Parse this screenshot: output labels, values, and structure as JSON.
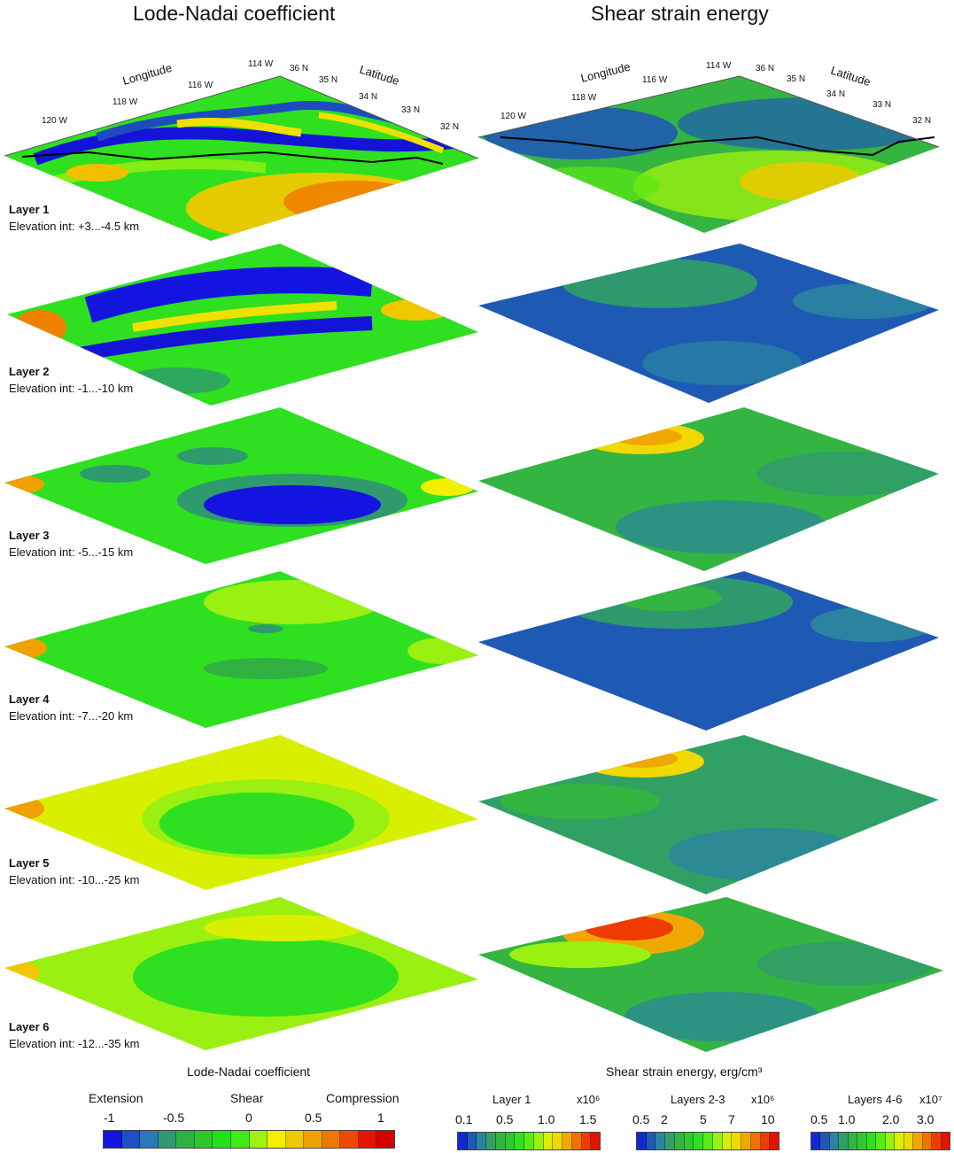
{
  "titles": {
    "left": "Lode-Nadai coefficient",
    "right": "Shear strain energy"
  },
  "axes": {
    "longitude_label": "Longitude",
    "latitude_label": "Latitude",
    "longitude_ticks": [
      "120 W",
      "118 W",
      "116 W",
      "114 W"
    ],
    "latitude_ticks": [
      "36 N",
      "35 N",
      "34 N",
      "33 N",
      "32 N"
    ]
  },
  "layers": [
    {
      "name": "Layer 1",
      "elevation": "Elevation int: +3...-4.5 km"
    },
    {
      "name": "Layer 2",
      "elevation": "Elevation int: -1...-10 km"
    },
    {
      "name": "Layer 3",
      "elevation": "Elevation int: -5...-15 km"
    },
    {
      "name": "Layer 4",
      "elevation": "Elevation int: -7...-20 km"
    },
    {
      "name": "Layer 5",
      "elevation": "Elevation int: -10...-25 km"
    },
    {
      "name": "Layer 6",
      "elevation": "Elevation int: -12...-35 km"
    }
  ],
  "legend_lode": {
    "title": "Lode-Nadai coefficient",
    "labels": [
      "Extension",
      "Shear",
      "Compression"
    ],
    "ticks": [
      "-1",
      "-0.5",
      "0",
      "0.5",
      "1"
    ]
  },
  "legend_sse": {
    "title": "Shear strain energy, erg/cm³",
    "scales": [
      {
        "name": "Layer 1",
        "unit": "x10⁶",
        "ticks": [
          "0.1",
          "0.5",
          "1.0",
          "1.5"
        ]
      },
      {
        "name": "Layers 2-3",
        "unit": "x10⁶",
        "ticks": [
          "0.5",
          "2",
          "5",
          "7",
          "10"
        ]
      },
      {
        "name": "Layers 4-6",
        "unit": "x10⁷",
        "ticks": [
          "0.5",
          "1.0",
          "2.0",
          "3.0"
        ]
      }
    ]
  },
  "colors": {
    "lode_scale": [
      "#1414e0",
      "#1e50c8",
      "#2a78b4",
      "#2e9a6e",
      "#30b040",
      "#2ec82a",
      "#22e01a",
      "#40ea14",
      "#a0f010",
      "#f0f000",
      "#f0c800",
      "#f0a000",
      "#f07800",
      "#f04800",
      "#e81400",
      "#d40000"
    ],
    "sse_scale": [
      "#1428d0",
      "#1e5ab4",
      "#2a84a0",
      "#30a064",
      "#34b440",
      "#30c830",
      "#2ee020",
      "#5aea14",
      "#9af010",
      "#d8f000",
      "#f0d800",
      "#f0a800",
      "#f07000",
      "#ee3c00",
      "#e01400"
    ]
  }
}
